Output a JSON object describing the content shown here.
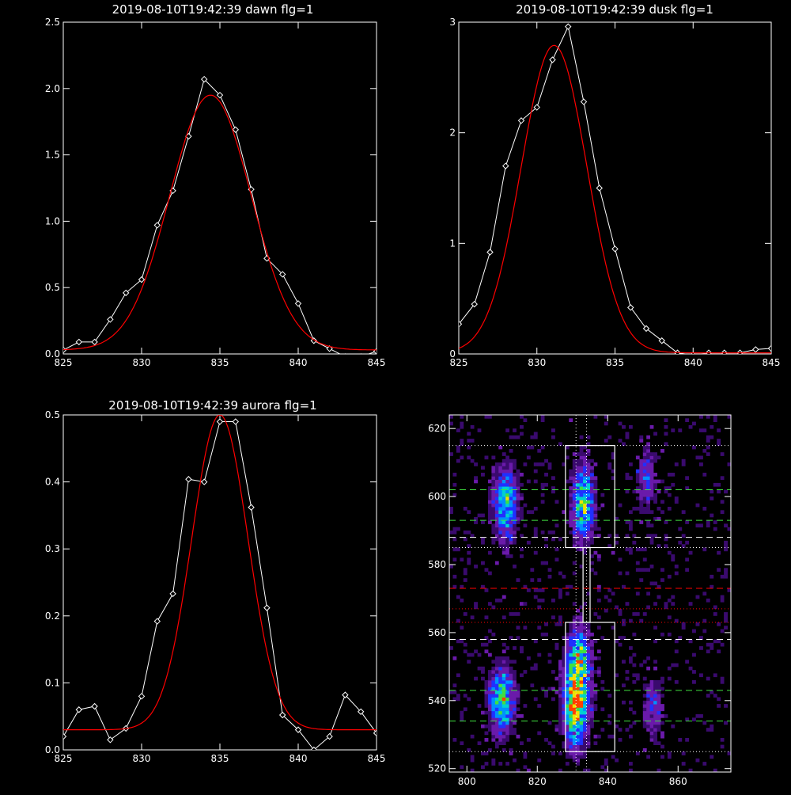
{
  "chart_data": [
    {
      "type": "line",
      "title": "2019-08-10T19:42:39 dawn flg=1",
      "xlim": [
        825,
        845
      ],
      "ylim": [
        0,
        2.5
      ],
      "xticks": [
        825,
        830,
        835,
        840,
        845
      ],
      "xtick_labels": [
        "825",
        "830",
        "835",
        "840",
        "845"
      ],
      "yticks": [
        0,
        0.5,
        1,
        1.5,
        2,
        2.5
      ],
      "ytick_labels": [
        "0.0",
        "0.5",
        "1.0",
        "1.5",
        "2.0",
        "2.5"
      ],
      "series": [
        {
          "color": "#ffffff",
          "marker": "diamond",
          "x": [
            825,
            826,
            827,
            828,
            829,
            830,
            831,
            832,
            833,
            834,
            835,
            836,
            837,
            838,
            839,
            840,
            841,
            842,
            843,
            844,
            845
          ],
          "y": [
            0.03,
            0.09,
            0.09,
            0.26,
            0.46,
            0.56,
            0.97,
            1.23,
            1.64,
            2.07,
            1.95,
            1.69,
            1.24,
            0.72,
            0.6,
            0.38,
            0.1,
            0.04,
            -0.02,
            -0.02,
            0.02
          ]
        },
        {
          "color": "#ff0000",
          "fit": "gaussian",
          "amplitude": 1.92,
          "center": 834.4,
          "sigma": 2.6,
          "offset": 0.03
        }
      ]
    },
    {
      "type": "line",
      "title": "2019-08-10T19:42:39 dusk flg=1",
      "xlim": [
        825,
        845
      ],
      "ylim": [
        0,
        3
      ],
      "xticks": [
        825,
        830,
        835,
        840,
        845
      ],
      "xtick_labels": [
        "825",
        "830",
        "835",
        "840",
        "845"
      ],
      "yticks": [
        0,
        1,
        2,
        3
      ],
      "ytick_labels": [
        "0",
        "1",
        "2",
        "3"
      ],
      "series": [
        {
          "color": "#ffffff",
          "marker": "diamond",
          "x": [
            825,
            826,
            827,
            828,
            829,
            830,
            831,
            832,
            833,
            834,
            835,
            836,
            837,
            838,
            839,
            840,
            841,
            842,
            843,
            844,
            845
          ],
          "y": [
            0.27,
            0.45,
            0.92,
            1.7,
            2.11,
            2.23,
            2.66,
            2.96,
            2.28,
            1.5,
            0.95,
            0.42,
            0.23,
            0.12,
            0.01,
            -0.01,
            0.01,
            0.01,
            0.01,
            0.04,
            0.05
          ]
        },
        {
          "color": "#ff0000",
          "fit": "gaussian",
          "amplitude": 2.78,
          "center": 831.1,
          "sigma": 2.1,
          "offset": 0.01
        }
      ]
    },
    {
      "type": "line",
      "title": "2019-08-10T19:42:39 aurora flg=1",
      "xlim": [
        825,
        845
      ],
      "ylim": [
        0,
        0.5
      ],
      "xticks": [
        825,
        830,
        835,
        840,
        845
      ],
      "xtick_labels": [
        "825",
        "830",
        "835",
        "840",
        "845"
      ],
      "yticks": [
        0,
        0.1,
        0.2,
        0.3,
        0.4,
        0.5
      ],
      "ytick_labels": [
        "0.0",
        "0.1",
        "0.2",
        "0.3",
        "0.4",
        "0.5"
      ],
      "series": [
        {
          "color": "#ffffff",
          "marker": "diamond",
          "x": [
            825,
            826,
            827,
            828,
            829,
            830,
            831,
            832,
            833,
            834,
            835,
            836,
            837,
            838,
            839,
            840,
            841,
            842,
            843,
            844,
            845
          ],
          "y": [
            0.02,
            0.06,
            0.065,
            0.015,
            0.032,
            0.08,
            0.192,
            0.233,
            0.404,
            0.4,
            0.49,
            0.49,
            0.362,
            0.212,
            0.052,
            0.03,
            0,
            0.02,
            0.082,
            0.057,
            0.025
          ]
        },
        {
          "color": "#ff0000",
          "fit": "gaussian",
          "amplitude": 0.47,
          "center": 835.0,
          "sigma": 1.8,
          "offset": 0.03
        }
      ]
    },
    {
      "type": "heatmap",
      "xlim": [
        795,
        875
      ],
      "ylim": [
        519,
        624
      ],
      "xticks": [
        800,
        820,
        840,
        860
      ],
      "xtick_labels": [
        "800",
        "820",
        "840",
        "860"
      ],
      "yticks": [
        520,
        540,
        560,
        580,
        600,
        620
      ],
      "ytick_labels": [
        "520",
        "540",
        "560",
        "580",
        "600",
        "620"
      ],
      "colormap": [
        "#3a0a6e",
        "#6a1aaa",
        "#2030ff",
        "#0090ff",
        "#00d0d0",
        "#40e040",
        "#f0e000",
        "#ff4000"
      ],
      "blobs": [
        {
          "x": 810,
          "y": 540,
          "sx": 2.2,
          "sy": 6,
          "amp": 0.75
        },
        {
          "x": 811,
          "y": 598,
          "sx": 2.2,
          "sy": 7,
          "amp": 0.6
        },
        {
          "x": 831,
          "y": 540,
          "sx": 2.2,
          "sy": 8,
          "amp": 1.0
        },
        {
          "x": 833,
          "y": 598,
          "sx": 2.0,
          "sy": 7,
          "amp": 0.7
        },
        {
          "x": 832,
          "y": 553,
          "sx": 2.0,
          "sy": 6,
          "amp": 0.55
        },
        {
          "x": 853,
          "y": 538,
          "sx": 2.0,
          "sy": 6,
          "amp": 0.25
        },
        {
          "x": 851,
          "y": 605,
          "sx": 2.0,
          "sy": 6,
          "amp": 0.25
        }
      ],
      "boxes": [
        {
          "x0": 828,
          "x1": 842,
          "y0": 585,
          "y1": 615,
          "color": "#ffffff"
        },
        {
          "x0": 828,
          "x1": 842,
          "y0": 525,
          "y1": 563,
          "color": "#ffffff"
        },
        {
          "x0": 833,
          "x1": 835,
          "y0": 563,
          "y1": 585,
          "color": "#ffffff"
        }
      ],
      "hlines": [
        {
          "y": 615,
          "color": "#ffffff",
          "style": "dotted"
        },
        {
          "y": 602,
          "color": "#40e040",
          "style": "dashed"
        },
        {
          "y": 593,
          "color": "#40e040",
          "style": "dashed"
        },
        {
          "y": 588,
          "color": "#ffffff",
          "style": "dashed"
        },
        {
          "y": 585,
          "color": "#ffffff",
          "style": "dotted"
        },
        {
          "y": 573,
          "color": "#ff0000",
          "style": "dashed"
        },
        {
          "y": 567,
          "color": "#ff0000",
          "style": "dotted"
        },
        {
          "y": 563,
          "color": "#ff0000",
          "style": "dotted"
        },
        {
          "y": 558,
          "color": "#ffffff",
          "style": "dashed"
        },
        {
          "y": 543,
          "color": "#40e040",
          "style": "dashed"
        },
        {
          "y": 534,
          "color": "#40e040",
          "style": "dashed"
        },
        {
          "y": 525,
          "color": "#ffffff",
          "style": "dotted"
        }
      ],
      "vlines": [
        {
          "x": 831,
          "color": "#ffffff",
          "style": "dotted"
        },
        {
          "x": 834,
          "color": "#ffffff",
          "style": "dotted"
        }
      ]
    }
  ]
}
